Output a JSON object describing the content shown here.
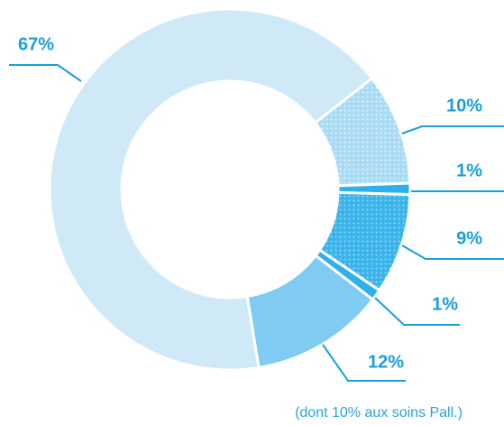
{
  "chart_data": {
    "type": "donut",
    "values": [
      10,
      1,
      9,
      1,
      12,
      67
    ],
    "value_labels": [
      "10%",
      "1%",
      "9%",
      "1%",
      "12%",
      "67%"
    ],
    "colors": [
      "#a9dbf5",
      "#2fb0ea",
      "#3ab4ea",
      "#2fb0ea",
      "#7fcbf1",
      "#cfe9f7"
    ],
    "patterned": [
      true,
      false,
      true,
      false,
      false,
      false
    ],
    "annotation": "(dont 10% aux soins Pall.)"
  }
}
